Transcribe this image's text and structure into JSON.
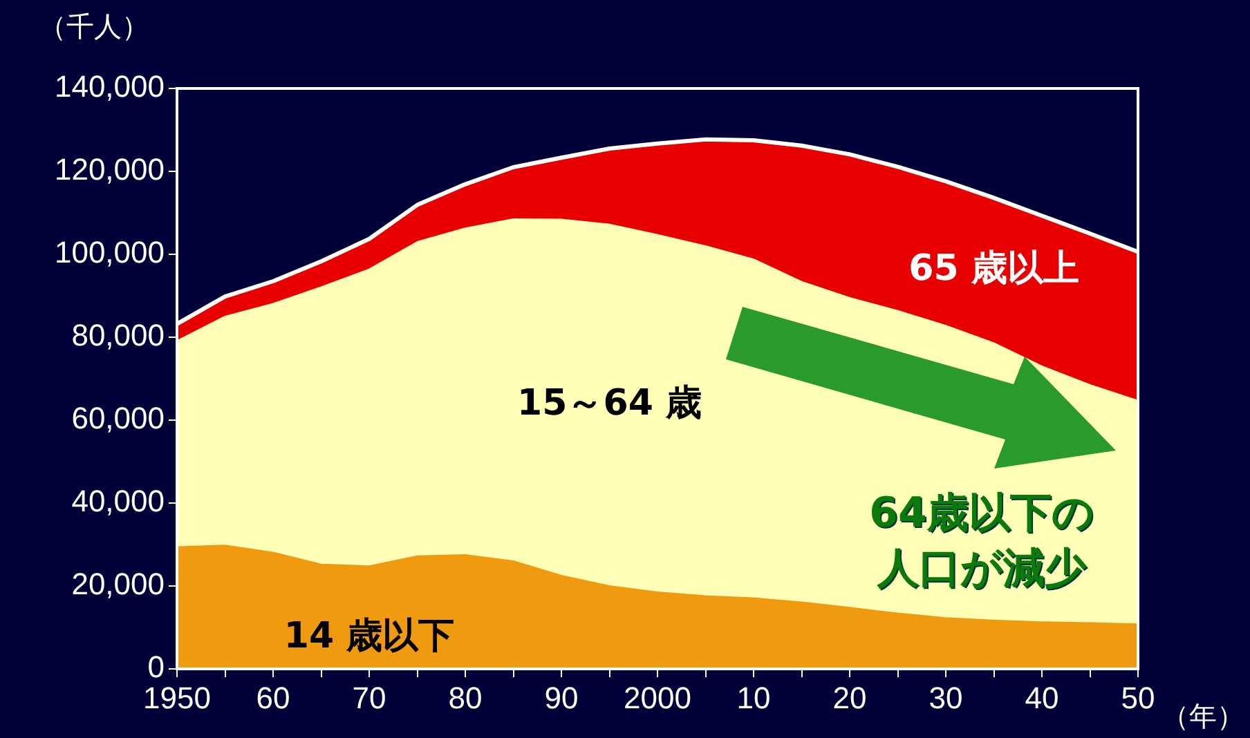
{
  "chart_data": {
    "type": "area",
    "ylabel": "（千人）",
    "xlabel": "（年）",
    "x": [
      1950,
      1955,
      1960,
      1965,
      1970,
      1975,
      1980,
      1985,
      1990,
      1995,
      2000,
      2005,
      2010,
      2015,
      2020,
      2025,
      2030,
      2035,
      2040,
      2045,
      2050
    ],
    "stacked": true,
    "series": [
      {
        "name": "14 歳以下",
        "color": "#f09a10",
        "values": [
          29400,
          29800,
          28100,
          25200,
          24800,
          27200,
          27500,
          26000,
          22500,
          20000,
          18500,
          17600,
          17100,
          16100,
          14800,
          13400,
          12300,
          11700,
          11300,
          11100,
          10800
        ]
      },
      {
        "name": "15～64 歳",
        "color": "#ffffb8",
        "values": [
          49700,
          55200,
          60000,
          66900,
          71600,
          75800,
          78800,
          82500,
          85900,
          87200,
          86200,
          84400,
          81700,
          77300,
          74700,
          73000,
          70500,
          66900,
          61700,
          57400,
          53900
        ]
      },
      {
        "name": "65 歳以上",
        "color": "#e80000",
        "values": [
          4100,
          4800,
          5400,
          6200,
          7300,
          8900,
          10600,
          12500,
          14900,
          18300,
          22000,
          25700,
          28700,
          32800,
          34600,
          34700,
          34800,
          35000,
          36300,
          36500,
          35900
        ]
      }
    ],
    "xlim": [
      1950,
      2050
    ],
    "xticks": [
      1950,
      {
        "value": 1955,
        "label": null
      },
      {
        "value": 1960,
        "label": "60"
      },
      {
        "value": 1965,
        "label": null
      },
      {
        "value": 1970,
        "label": "70"
      },
      {
        "value": 1975,
        "label": null
      },
      {
        "value": 1980,
        "label": "80"
      },
      {
        "value": 1985,
        "label": null
      },
      {
        "value": 1990,
        "label": "90"
      },
      {
        "value": 1995,
        "label": null
      },
      2000,
      {
        "value": 2005,
        "label": null
      },
      {
        "value": 2010,
        "label": "10"
      },
      {
        "value": 2015,
        "label": null
      },
      {
        "value": 2020,
        "label": "20"
      },
      {
        "value": 2025,
        "label": null
      },
      {
        "value": 2030,
        "label": "30"
      },
      {
        "value": 2035,
        "label": null
      },
      {
        "value": 2040,
        "label": "40"
      },
      {
        "value": 2045,
        "label": null
      },
      {
        "value": 2050,
        "label": "50"
      }
    ],
    "ylim": [
      0,
      140000
    ],
    "yticks": [
      0,
      {
        "value": 20000,
        "label": "20,000"
      },
      {
        "value": 40000,
        "label": "40,000"
      },
      {
        "value": 60000,
        "label": "60,000"
      },
      {
        "value": 80000,
        "label": "80,000"
      },
      {
        "value": 100000,
        "label": "100,000"
      },
      {
        "value": 120000,
        "label": "120,000"
      },
      {
        "value": 140000,
        "label": "140,000"
      }
    ],
    "grid": false,
    "legend": false,
    "annotations": [
      "64歳以下の人口が減少"
    ]
  }
}
